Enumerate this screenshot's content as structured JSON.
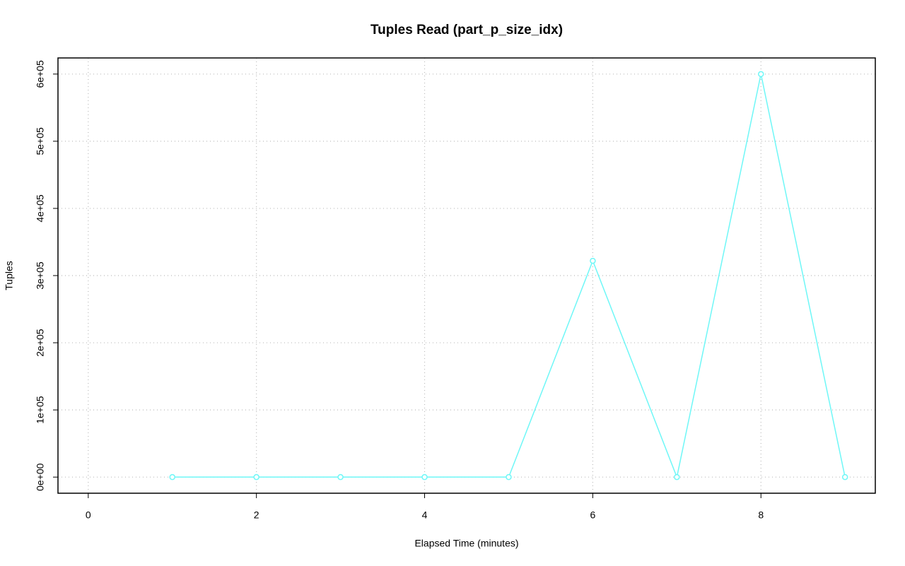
{
  "chart_data": {
    "type": "line",
    "title": "Tuples Read (part_p_size_idx)",
    "x_label": "Elapsed Time (minutes)",
    "y_label": "Tuples",
    "x": [
      1,
      2,
      3,
      4,
      5,
      6,
      7,
      8,
      9
    ],
    "series": [
      {
        "color": "#6ff7f7",
        "values": [
          0,
          0,
          0,
          0,
          0,
          322000,
          0,
          600000,
          0
        ]
      }
    ],
    "xlim": [
      -0.36,
      9.36
    ],
    "ylim": [
      -24000,
      624000
    ],
    "xticks": [
      0,
      2,
      4,
      6,
      8
    ],
    "yticks": [
      {
        "value": 0,
        "label": "0e+00"
      },
      {
        "value": 100000,
        "label": "1e+05"
      },
      {
        "value": 200000,
        "label": "2e+05"
      },
      {
        "value": 300000,
        "label": "3e+05"
      },
      {
        "value": 400000,
        "label": "4e+05"
      },
      {
        "value": 500000,
        "label": "5e+05"
      },
      {
        "value": 600000,
        "label": "6e+05"
      }
    ],
    "grid": true
  }
}
